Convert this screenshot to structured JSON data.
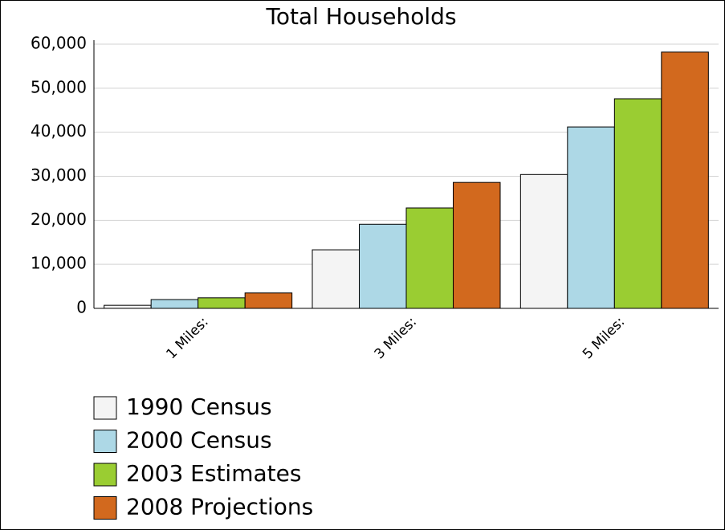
{
  "chart_data": {
    "type": "bar",
    "title": "Total Households",
    "categories": [
      "1 Miles:",
      "3 Miles:",
      "5 Miles:"
    ],
    "series": [
      {
        "name": "1990 Census",
        "color": "#f4f4f4",
        "values": [
          700,
          13300,
          30400
        ]
      },
      {
        "name": "2000 Census",
        "color": "#add8e6",
        "values": [
          2000,
          19100,
          41200
        ]
      },
      {
        "name": "2003 Estimates",
        "color": "#9acd32",
        "values": [
          2400,
          22800,
          47600
        ]
      },
      {
        "name": "2008 Projections",
        "color": "#d2691e",
        "values": [
          3500,
          28600,
          58200
        ]
      }
    ],
    "ylim": [
      0,
      60000
    ],
    "yticks": [
      0,
      {
        "value": 10000,
        "label": "10,000"
      },
      {
        "value": 20000,
        "label": "20,000"
      },
      {
        "value": 30000,
        "label": "30,000"
      },
      {
        "value": 40000,
        "label": "40,000"
      },
      {
        "value": 50000,
        "label": "50,000"
      },
      {
        "value": 60000,
        "label": "60,000"
      }
    ],
    "grid": true
  }
}
